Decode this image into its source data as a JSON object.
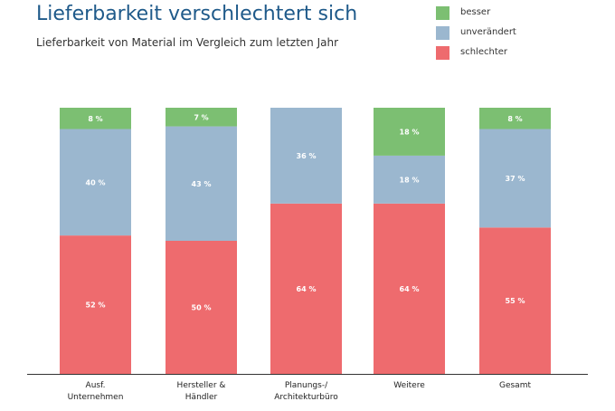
{
  "chart_data": {
    "type": "bar",
    "stacked": true,
    "title": "Lieferbarkeit verschlechtert sich",
    "subtitle": "Lieferbarkeit von Material im Vergleich zum letzten Jahr",
    "categories": [
      [
        "Ausf.",
        "Unternehmen"
      ],
      [
        "Hersteller &",
        "Händler"
      ],
      [
        "Planungs-/",
        "Architekturbüro"
      ],
      [
        "Weitere"
      ],
      [
        "Gesamt"
      ]
    ],
    "series": [
      {
        "name": "schlechter",
        "color": "#ee6b6e",
        "values": [
          52,
          50,
          64,
          64,
          55
        ],
        "labels": [
          "52 %",
          "50 %",
          "64 %",
          "64 %",
          "55 %"
        ]
      },
      {
        "name": "unverändert",
        "color": "#9bb7cf",
        "values": [
          40,
          43,
          36,
          18,
          37
        ],
        "labels": [
          "40 %",
          "43 %",
          "36 %",
          "18 %",
          "37 %"
        ]
      },
      {
        "name": "besser",
        "color": "#7cbf72",
        "values": [
          8,
          7,
          0,
          18,
          8
        ],
        "labels": [
          "8 %",
          "7 %",
          "",
          "18 %",
          "8 %"
        ]
      }
    ],
    "legend_order": [
      "besser",
      "unverändert",
      "schlechter"
    ],
    "ylim": [
      0,
      100
    ],
    "legend_position": "top-right",
    "grid": false
  }
}
